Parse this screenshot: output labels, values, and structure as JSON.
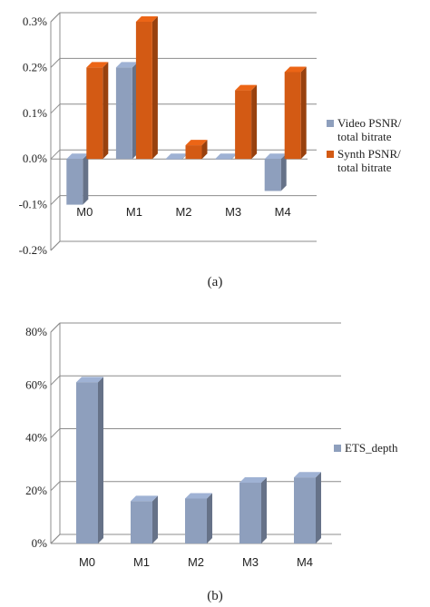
{
  "figure": {
    "caption_a": "(a)",
    "caption_b": "(b)"
  },
  "chart_data": [
    {
      "type": "bar",
      "categories": [
        "M0",
        "M1",
        "M2",
        "M3",
        "M4"
      ],
      "series": [
        {
          "name": "Video PSNR/ total bitrate",
          "values": [
            -0.1,
            0.2,
            0.0,
            0.0,
            -0.07
          ],
          "color": "#8e9fbd"
        },
        {
          "name": "Synth PSNR/ total bitrate",
          "values": [
            0.2,
            0.3,
            0.03,
            0.15,
            0.19
          ],
          "color": "#d35a14"
        }
      ],
      "y_ticks": [
        "0.3%",
        "0.2%",
        "0.1%",
        "0.0%",
        "-0.1%",
        "-0.2%"
      ],
      "legend_lines": [
        [
          "Video PSNR/",
          "total bitrate"
        ],
        [
          "Synth PSNR/",
          "total bitrate"
        ]
      ],
      "ylim": [
        -0.2,
        0.3
      ],
      "unit": "%",
      "grid": true,
      "legend": "right"
    },
    {
      "type": "bar",
      "categories": [
        "M0",
        "M1",
        "M2",
        "M3",
        "M4"
      ],
      "series": [
        {
          "name": "ETS_depth",
          "values": [
            61,
            16,
            17,
            23,
            25
          ],
          "color": "#8e9fbd"
        }
      ],
      "y_ticks": [
        "80%",
        "60%",
        "40%",
        "20%",
        "0%"
      ],
      "legend_lines": [
        [
          "ETS_depth"
        ]
      ],
      "ylim": [
        0,
        80
      ],
      "unit": "%",
      "grid": true,
      "legend": "right"
    }
  ]
}
